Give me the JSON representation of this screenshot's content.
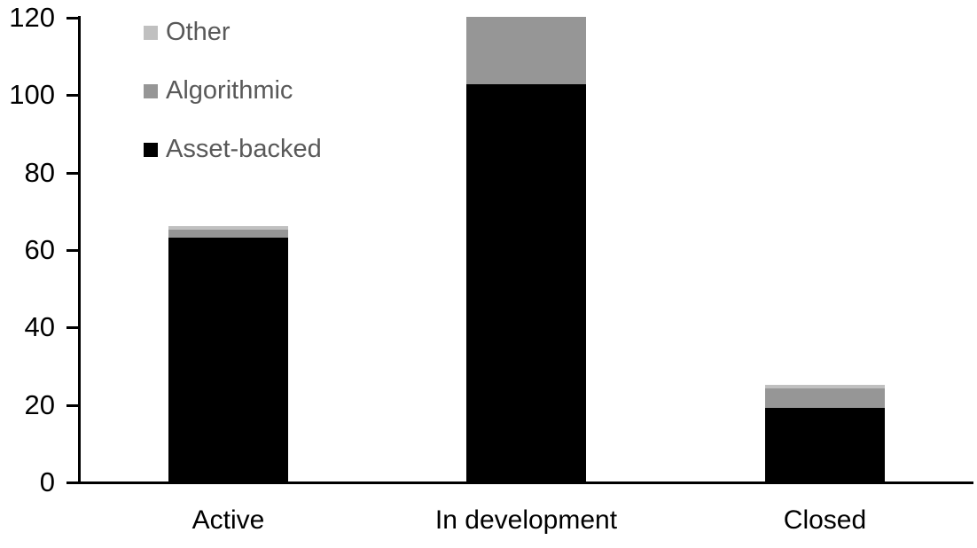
{
  "chart_data": {
    "type": "bar",
    "stacked": true,
    "title": "",
    "xlabel": "",
    "ylabel": "",
    "categories": [
      "Active",
      "In development",
      "Closed"
    ],
    "series": [
      {
        "name": "Asset-backed",
        "color": "#000000",
        "values": [
          63,
          102.5,
          19
        ]
      },
      {
        "name": "Algorithmic",
        "color": "#969696",
        "values": [
          2,
          17.5,
          5
        ]
      },
      {
        "name": "Other",
        "color": "#c0c0c0",
        "values": [
          1,
          0,
          1
        ]
      }
    ],
    "totals": [
      66,
      120,
      25
    ],
    "ylim": [
      0,
      120
    ],
    "yticks": [
      0,
      20,
      40,
      60,
      80,
      100,
      120
    ],
    "grid": false,
    "legend": {
      "position": "top-left",
      "order": [
        "Other",
        "Algorithmic",
        "Asset-backed"
      ],
      "text_color": "#595959"
    },
    "axis_color": "#000000",
    "background_color": "#ffffff"
  }
}
